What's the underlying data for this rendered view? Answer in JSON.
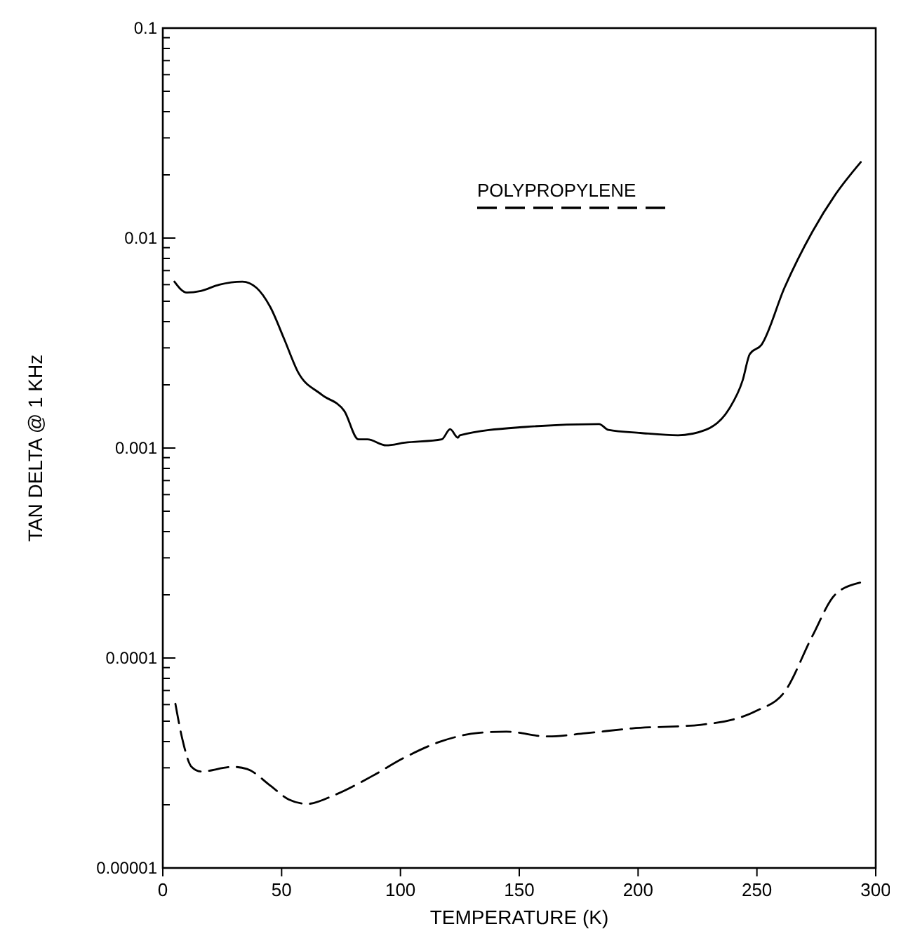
{
  "chart_data": {
    "type": "line",
    "xlabel": "TEMPERATURE (K)",
    "ylabel": "TAN DELTA @ 1 KHz",
    "log": "y",
    "grid": false,
    "legend": "top",
    "marker": "none",
    "xlim": [
      0,
      300
    ],
    "xticks": [
      0,
      50,
      100,
      150,
      200,
      250,
      300
    ],
    "ylim": [
      1e-05,
      0.1
    ],
    "yticks": [
      {
        "value": 1e-05,
        "label": "0.00001"
      },
      {
        "value": 2e-05,
        "label": null
      },
      {
        "value": 3e-05,
        "label": null
      },
      {
        "value": 4e-05,
        "label": null
      },
      {
        "value": 5e-05,
        "label": null
      },
      {
        "value": 6e-05,
        "label": null
      },
      {
        "value": 7e-05,
        "label": null
      },
      {
        "value": 8e-05,
        "label": null
      },
      {
        "value": 9e-05,
        "label": null
      },
      {
        "value": 0.0001,
        "label": "0.0001"
      },
      {
        "value": 0.0002,
        "label": null
      },
      {
        "value": 0.0003,
        "label": null
      },
      {
        "value": 0.0004,
        "label": null
      },
      {
        "value": 0.0005,
        "label": null
      },
      {
        "value": 0.0006,
        "label": null
      },
      {
        "value": 0.0007,
        "label": null
      },
      {
        "value": 0.0008,
        "label": null
      },
      {
        "value": 0.0009,
        "label": null
      },
      {
        "value": 0.001,
        "label": "0.001"
      },
      {
        "value": 0.002,
        "label": null
      },
      {
        "value": 0.003,
        "label": null
      },
      {
        "value": 0.004,
        "label": null
      },
      {
        "value": 0.005,
        "label": null
      },
      {
        "value": 0.006,
        "label": null
      },
      {
        "value": 0.007,
        "label": null
      },
      {
        "value": 0.008,
        "label": null
      },
      {
        "value": 0.009,
        "label": null
      },
      {
        "value": 0.01,
        "label": "0.01"
      },
      {
        "value": 0.02,
        "label": null
      },
      {
        "value": 0.03,
        "label": null
      },
      {
        "value": 0.04,
        "label": null
      },
      {
        "value": 0.05,
        "label": null
      },
      {
        "value": 0.06,
        "label": null
      },
      {
        "value": 0.07,
        "label": null
      },
      {
        "value": 0.08,
        "label": null
      },
      {
        "value": 0.09,
        "label": null
      },
      {
        "value": 0.1,
        "label": "0.1"
      }
    ],
    "series": [
      {
        "color": "#000000",
        "line_style": "solid",
        "x": [
          4.9,
          10.1,
          16,
          23.8,
          33.5,
          39.4,
          45.2,
          51.1,
          56.9,
          66.7,
          76.4,
          82.3,
          86.1,
          94,
          101.8,
          117.4,
          120.9,
          124.2,
          125,
          152.4,
          183.6,
          187.5,
          201,
          216.8,
          228.4,
          238.2,
          244,
          247,
          251.9,
          261.6,
          273.3,
          283,
          293.7
        ],
        "values": [
          0.0062,
          0.0055,
          0.0056,
          0.006,
          0.0062,
          0.0058,
          0.0047,
          0.0033,
          0.0023,
          0.0018,
          0.0015,
          0.0011,
          0.0011,
          0.00103,
          0.00106,
          0.0011,
          0.00123,
          0.00112,
          0.00115,
          0.00126,
          0.0013,
          0.00122,
          0.00118,
          0.00115,
          0.00122,
          0.00153,
          0.0021,
          0.0028,
          0.0031,
          0.0058,
          0.0107,
          0.0161,
          0.023
        ]
      },
      {
        "name": "POLYPROPYLENE",
        "color": "#000000",
        "line_style": "dashed",
        "x": [
          5.3,
          8.2,
          12.1,
          16,
          29.6,
          35.5,
          45.2,
          53,
          60.8,
          72.5,
          88.1,
          101.8,
          117.4,
          132.9,
          144.6,
          162.1,
          177.8,
          197.3,
          226.5,
          249.9,
          261.6,
          273.3,
          283,
          293.7
        ],
        "values": [
          6.05e-05,
          4.12e-05,
          3.03e-05,
          2.88e-05,
          3.03e-05,
          2.96e-05,
          2.47e-05,
          2.12e-05,
          2.02e-05,
          2.23e-05,
          2.74e-05,
          3.36e-05,
          4.02e-05,
          4.4e-05,
          4.46e-05,
          4.23e-05,
          4.38e-05,
          4.62e-05,
          4.81e-05,
          5.61e-05,
          6.89e-05,
          0.000127,
          0.000201,
          0.000229
        ]
      }
    ]
  }
}
